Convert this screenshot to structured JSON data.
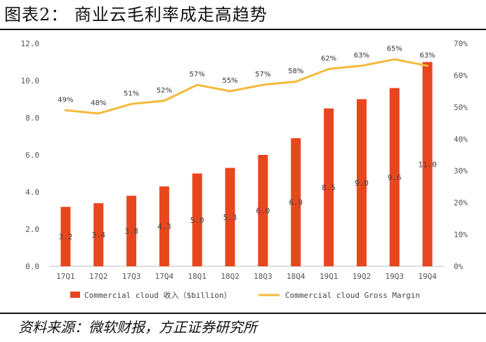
{
  "figure": {
    "title": "图表2： 商业云毛利率成走高趋势",
    "source": "资料来源：微软财报，方正证券研究所"
  },
  "colors": {
    "bar": "#E8461E",
    "line": "#F5B93A",
    "axis": "#bfbfbf",
    "text": "#444444"
  },
  "chart_data": {
    "type": "bar",
    "categories": [
      "17Q1",
      "17Q2",
      "17Q3",
      "17Q4",
      "18Q1",
      "18Q2",
      "18Q3",
      "18Q4",
      "19Q1",
      "19Q2",
      "19Q3",
      "19Q4"
    ],
    "series": [
      {
        "name": "Commercial cloud 收入（$billion）",
        "type": "bar",
        "axis": "left",
        "values": [
          3.2,
          3.4,
          3.8,
          4.3,
          5.0,
          5.3,
          6.0,
          6.9,
          8.5,
          9.0,
          9.6,
          11.0
        ],
        "labels": [
          "3.2",
          "3.4",
          "3.8",
          "4.3",
          "5.0",
          "5.3",
          "6.0",
          "6.9",
          "8.5",
          "9.0",
          "9.6",
          "11.0"
        ]
      },
      {
        "name": "Commercial cloud Gross Margin",
        "type": "line",
        "axis": "right",
        "values": [
          49,
          48,
          51,
          52,
          57,
          55,
          57,
          58,
          62,
          63,
          65,
          63
        ],
        "labels": [
          "49%",
          "48%",
          "51%",
          "52%",
          "57%",
          "55%",
          "57%",
          "58%",
          "62%",
          "63%",
          "65%",
          "63%"
        ]
      }
    ],
    "y_left": {
      "lim": [
        0,
        12
      ],
      "ticks": [
        "0.0",
        "2.0",
        "4.0",
        "6.0",
        "8.0",
        "10.0",
        "12.0"
      ]
    },
    "y_right": {
      "lim": [
        0,
        70
      ],
      "ticks": [
        "0%",
        "10%",
        "20%",
        "30%",
        "40%",
        "50%",
        "60%",
        "70%"
      ]
    },
    "legend": {
      "position": "bottom"
    },
    "grid": false
  }
}
